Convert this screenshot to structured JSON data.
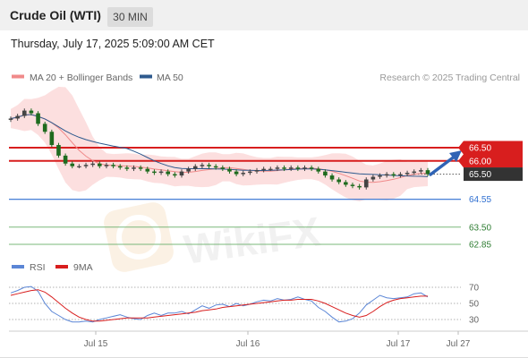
{
  "header": {
    "title": "Crude Oil (WTI)",
    "timeframe": "30 MIN",
    "datetime": "Thursday, July 17, 2025 5:09:00 AM CET"
  },
  "legend": {
    "items": [
      {
        "label": "MA 20 + Bollinger Bands",
        "color": "#f08a8a"
      },
      {
        "label": "MA 50",
        "color": "#2e5a8e"
      }
    ],
    "credit": "Research © 2025 Trading Central"
  },
  "colors": {
    "resistance": "#d81e1e",
    "pivot": "#2f6fd1",
    "support": "#7ab87a",
    "last_price_bg": "#333333",
    "rsi": "#5b86d6",
    "rsi_ma": "#d81e1e",
    "band_fill": "#fbd9d9",
    "arrow": "#2f63b5",
    "candle_up": "#444444",
    "candle_down": "#1e6b1e"
  },
  "chart_data": [
    {
      "type": "candlestick",
      "title": "",
      "x_ticks": [
        "Jul 15",
        "Jul 16",
        "Jul 17",
        "Jul 27"
      ],
      "ylim": [
        62.4,
        69.5
      ],
      "last_price": 65.5,
      "levels": [
        {
          "value": 66.5,
          "label": "66.50",
          "kind": "resistance"
        },
        {
          "value": 66.0,
          "label": "66.00",
          "kind": "resistance"
        },
        {
          "value": 65.5,
          "label": "65.50",
          "kind": "last"
        },
        {
          "value": 64.55,
          "label": "64.55",
          "kind": "pivot"
        },
        {
          "value": 63.5,
          "label": "63.50",
          "kind": "support"
        },
        {
          "value": 62.85,
          "label": "62.85",
          "kind": "support"
        }
      ],
      "series": [
        {
          "name": "MA 20 + Bollinger Bands"
        },
        {
          "name": "MA 50"
        }
      ],
      "close": [
        67.6,
        67.7,
        67.9,
        67.8,
        67.4,
        67.1,
        66.6,
        66.2,
        65.9,
        65.8,
        65.8,
        65.85,
        65.9,
        65.8,
        65.85,
        65.8,
        65.75,
        65.7,
        65.75,
        65.7,
        65.6,
        65.55,
        65.6,
        65.5,
        65.45,
        65.6,
        65.7,
        65.8,
        65.85,
        65.8,
        65.75,
        65.7,
        65.6,
        65.5,
        65.55,
        65.6,
        65.65,
        65.7,
        65.7,
        65.75,
        65.7,
        65.75,
        65.7,
        65.75,
        65.7,
        65.6,
        65.45,
        65.3,
        65.2,
        65.1,
        65.05,
        65.0,
        65.3,
        65.4,
        65.45,
        65.5,
        65.45,
        65.5,
        65.55,
        65.6,
        65.65,
        65.5
      ]
    },
    {
      "type": "line",
      "title": "",
      "ylim": [
        20,
        80
      ],
      "y_ticks": [
        70,
        50,
        30
      ],
      "series": [
        {
          "name": "RSI",
          "values": [
            63,
            66,
            70,
            71,
            65,
            50,
            40,
            35,
            30,
            27,
            27,
            28,
            27,
            30,
            32,
            34,
            36,
            33,
            31,
            30,
            35,
            38,
            35,
            38,
            38,
            40,
            37,
            42,
            47,
            44,
            48,
            49,
            46,
            50,
            47,
            49,
            52,
            54,
            53,
            56,
            54,
            55,
            58,
            55,
            53,
            45,
            40,
            33,
            27,
            28,
            31,
            38,
            48,
            54,
            60,
            57,
            56,
            57,
            58,
            62,
            63,
            58
          ]
        },
        {
          "name": "9MA",
          "values": [
            60,
            62,
            64,
            66,
            67,
            64,
            58,
            51,
            44,
            38,
            33,
            30,
            28,
            28,
            29,
            30,
            31,
            32,
            32,
            32,
            32,
            33,
            34,
            35,
            36,
            37,
            38,
            39,
            41,
            42,
            43,
            45,
            46,
            47,
            48,
            49,
            50,
            51,
            52,
            53,
            54,
            54,
            55,
            55,
            55,
            53,
            50,
            46,
            42,
            38,
            35,
            33,
            35,
            40,
            46,
            51,
            54,
            56,
            57,
            58,
            59,
            59
          ]
        }
      ]
    }
  ]
}
